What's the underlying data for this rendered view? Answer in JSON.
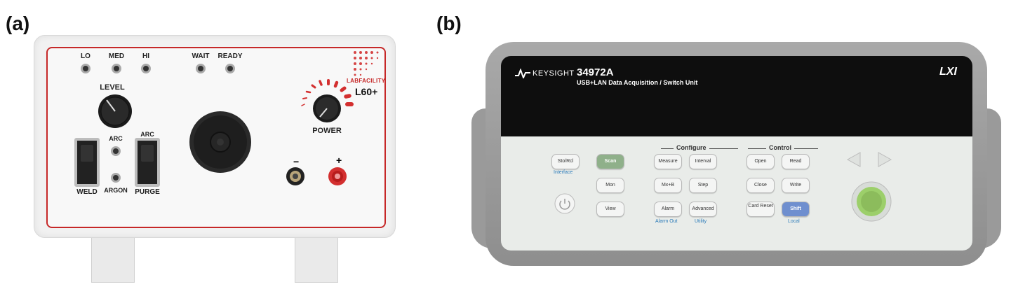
{
  "panels": {
    "a_label": "(a)",
    "b_label": "(b)"
  },
  "unit_a": {
    "brand": "LABFACILITY",
    "model": "L60+",
    "led_labels": [
      "LO",
      "MED",
      "HI",
      "WAIT",
      "READY"
    ],
    "level_label": "LEVEL",
    "power_label": "POWER",
    "arc_label": "ARC",
    "arc_label_2": "ARC",
    "weld_label": "WELD",
    "argon_label": "ARGON",
    "purge_label": "PURGE",
    "minus": "−",
    "plus": "+",
    "colors": {
      "accent": "#c62828"
    }
  },
  "unit_b": {
    "brand": "KEYSIGHT",
    "model": "34972A",
    "subtitle": "USB+LAN Data Acquisition / Switch Unit",
    "lxi": "LXI",
    "configure": "Configure",
    "control": "Control",
    "interface": "Interface",
    "alarm_out": "Alarm Out",
    "utility": "Utility",
    "local": "Local",
    "buttons": {
      "sto_rcl": "Sto/Rcl",
      "scan": "Scan",
      "mon": "Mon",
      "view": "View",
      "measure": "Measure",
      "interval": "Interval",
      "mxb": "Mx+B",
      "step": "Step",
      "alarm": "Alarm",
      "advanced": "Advanced",
      "open": "Open",
      "read": "Read",
      "close": "Close",
      "write": "Write",
      "card_reset": "Card Reset",
      "shift": "Shift"
    },
    "colors": {
      "scan": "#8fb08a",
      "shift": "#6f8fcf",
      "knob": "#9ccf6a"
    }
  }
}
